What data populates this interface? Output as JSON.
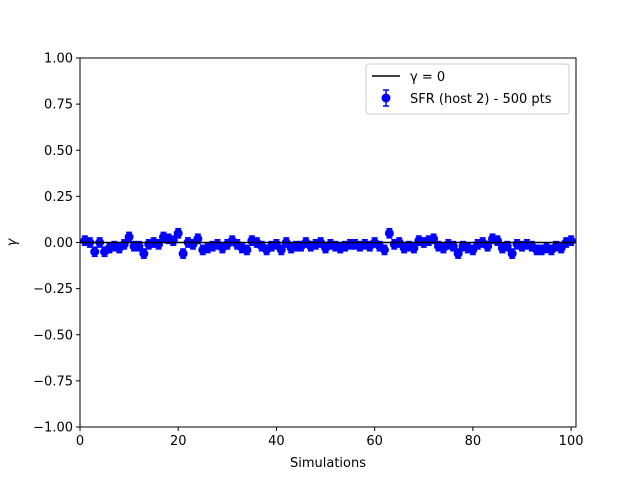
{
  "chart_data": {
    "type": "scatter",
    "title": "",
    "xlabel": "Simulations",
    "ylabel": "γ",
    "xlim": [
      0,
      101
    ],
    "ylim": [
      -1.0,
      1.0
    ],
    "x_ticks": [
      0,
      20,
      40,
      60,
      80,
      100
    ],
    "y_ticks": [
      -1.0,
      -0.75,
      -0.5,
      -0.25,
      0.0,
      0.25,
      0.5,
      0.75,
      1.0
    ],
    "x_tick_labels": [
      "0",
      "20",
      "40",
      "60",
      "80",
      "100"
    ],
    "y_tick_labels": [
      "−1.00",
      "−0.75",
      "−0.50",
      "−0.25",
      "0.00",
      "0.25",
      "0.50",
      "0.75",
      "1.00"
    ],
    "grid": false,
    "legend_position": "top-right",
    "legend": [
      {
        "label": "γ = 0",
        "kind": "line"
      },
      {
        "label": "SFR (host 2) - 500 pts",
        "kind": "errorbar"
      }
    ],
    "series": [
      {
        "name": "γ = 0",
        "type": "hline",
        "y": 0,
        "color": "#000000"
      },
      {
        "name": "SFR (host 2) - 500 pts",
        "type": "errorbar",
        "color": "#0000ff",
        "x": [
          1,
          2,
          3,
          4,
          5,
          6,
          7,
          8,
          9,
          10,
          11,
          12,
          13,
          14,
          15,
          16,
          17,
          18,
          19,
          20,
          21,
          22,
          23,
          24,
          25,
          26,
          27,
          28,
          29,
          30,
          31,
          32,
          33,
          34,
          35,
          36,
          37,
          38,
          39,
          40,
          41,
          42,
          43,
          44,
          45,
          46,
          47,
          48,
          49,
          50,
          51,
          52,
          53,
          54,
          55,
          56,
          57,
          58,
          59,
          60,
          61,
          62,
          63,
          64,
          65,
          66,
          67,
          68,
          69,
          70,
          71,
          72,
          73,
          74,
          75,
          76,
          77,
          78,
          79,
          80,
          81,
          82,
          83,
          84,
          85,
          86,
          87,
          88,
          89,
          90,
          91,
          92,
          93,
          94,
          95,
          96,
          97,
          98,
          99,
          100
        ],
        "y": [
          0.01,
          0.0,
          -0.05,
          0.0,
          -0.05,
          -0.03,
          -0.02,
          -0.03,
          -0.01,
          0.03,
          -0.02,
          -0.02,
          -0.06,
          -0.01,
          0.0,
          -0.01,
          0.03,
          0.02,
          0.01,
          0.05,
          -0.06,
          0.0,
          -0.01,
          0.02,
          -0.04,
          -0.03,
          -0.02,
          -0.01,
          -0.03,
          -0.01,
          0.01,
          -0.01,
          -0.03,
          -0.04,
          0.01,
          0.0,
          -0.02,
          -0.04,
          -0.02,
          -0.01,
          -0.04,
          0.0,
          -0.03,
          -0.02,
          -0.02,
          0.0,
          -0.02,
          -0.01,
          0.0,
          -0.03,
          -0.01,
          -0.02,
          -0.03,
          -0.02,
          -0.01,
          -0.01,
          -0.02,
          -0.01,
          -0.02,
          0.0,
          -0.02,
          -0.04,
          0.05,
          -0.01,
          0.0,
          -0.03,
          -0.02,
          -0.03,
          0.01,
          0.0,
          0.01,
          0.02,
          -0.02,
          -0.03,
          -0.01,
          -0.02,
          -0.06,
          -0.02,
          -0.03,
          -0.04,
          -0.01,
          0.0,
          -0.02,
          0.02,
          0.01,
          -0.03,
          -0.02,
          -0.06,
          -0.01,
          -0.02,
          -0.01,
          -0.02,
          -0.04,
          -0.04,
          -0.03,
          -0.04,
          -0.02,
          -0.03,
          0.0,
          0.01
        ],
        "yerr": 0.025
      }
    ]
  }
}
